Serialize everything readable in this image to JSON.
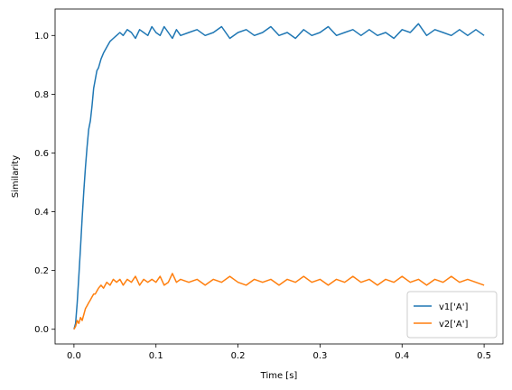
{
  "chart_data": {
    "type": "line",
    "title": "",
    "xlabel": "Time [s]",
    "ylabel": "Similarity",
    "xlim": [
      -0.023,
      0.523
    ],
    "ylim": [
      -0.05,
      1.09
    ],
    "xticks": [
      0.0,
      0.1,
      0.2,
      0.3,
      0.4,
      0.5
    ],
    "xtick_labels": [
      "0.0",
      "0.1",
      "0.2",
      "0.3",
      "0.4",
      "0.5"
    ],
    "yticks": [
      0.0,
      0.2,
      0.4,
      0.6,
      0.8,
      1.0
    ],
    "ytick_labels": [
      "0.0",
      "0.2",
      "0.4",
      "0.6",
      "0.8",
      "1.0"
    ],
    "grid": false,
    "legend_position": "lower-right",
    "series": [
      {
        "name": "v1['A']",
        "color": "#1f77b4",
        "x": [
          0.0,
          0.002,
          0.004,
          0.006,
          0.008,
          0.01,
          0.012,
          0.014,
          0.016,
          0.018,
          0.02,
          0.022,
          0.024,
          0.026,
          0.028,
          0.03,
          0.033,
          0.036,
          0.04,
          0.044,
          0.048,
          0.052,
          0.056,
          0.06,
          0.065,
          0.07,
          0.075,
          0.08,
          0.085,
          0.09,
          0.095,
          0.1,
          0.105,
          0.11,
          0.115,
          0.12,
          0.125,
          0.13,
          0.14,
          0.15,
          0.16,
          0.17,
          0.18,
          0.19,
          0.2,
          0.21,
          0.22,
          0.23,
          0.24,
          0.25,
          0.26,
          0.27,
          0.28,
          0.29,
          0.3,
          0.31,
          0.32,
          0.33,
          0.34,
          0.35,
          0.36,
          0.37,
          0.38,
          0.39,
          0.4,
          0.41,
          0.42,
          0.43,
          0.44,
          0.45,
          0.46,
          0.47,
          0.48,
          0.49,
          0.5
        ],
        "values": [
          0.0,
          0.02,
          0.09,
          0.18,
          0.28,
          0.38,
          0.47,
          0.55,
          0.62,
          0.68,
          0.71,
          0.76,
          0.82,
          0.85,
          0.88,
          0.89,
          0.92,
          0.94,
          0.96,
          0.98,
          0.99,
          1.0,
          1.01,
          1.0,
          1.02,
          1.01,
          0.99,
          1.02,
          1.01,
          1.0,
          1.03,
          1.01,
          1.0,
          1.03,
          1.01,
          0.99,
          1.02,
          1.0,
          1.01,
          1.02,
          1.0,
          1.01,
          1.03,
          0.99,
          1.01,
          1.02,
          1.0,
          1.01,
          1.03,
          1.0,
          1.01,
          0.99,
          1.02,
          1.0,
          1.01,
          1.03,
          1.0,
          1.01,
          1.02,
          1.0,
          1.02,
          1.0,
          1.01,
          0.99,
          1.02,
          1.01,
          1.04,
          1.0,
          1.02,
          1.01,
          1.0,
          1.02,
          1.0,
          1.02,
          1.0
        ]
      },
      {
        "name": "v2['A']",
        "color": "#ff7f0e",
        "x": [
          0.0,
          0.002,
          0.004,
          0.006,
          0.008,
          0.01,
          0.012,
          0.014,
          0.016,
          0.018,
          0.02,
          0.022,
          0.024,
          0.026,
          0.028,
          0.03,
          0.033,
          0.036,
          0.04,
          0.044,
          0.048,
          0.052,
          0.056,
          0.06,
          0.065,
          0.07,
          0.075,
          0.08,
          0.085,
          0.09,
          0.095,
          0.1,
          0.105,
          0.11,
          0.115,
          0.12,
          0.125,
          0.13,
          0.14,
          0.15,
          0.16,
          0.17,
          0.18,
          0.19,
          0.2,
          0.21,
          0.22,
          0.23,
          0.24,
          0.25,
          0.26,
          0.27,
          0.28,
          0.29,
          0.3,
          0.31,
          0.32,
          0.33,
          0.34,
          0.35,
          0.36,
          0.37,
          0.38,
          0.39,
          0.4,
          0.41,
          0.42,
          0.43,
          0.44,
          0.45,
          0.46,
          0.47,
          0.48,
          0.49,
          0.5
        ],
        "values": [
          0.0,
          0.01,
          0.03,
          0.02,
          0.04,
          0.03,
          0.05,
          0.07,
          0.08,
          0.09,
          0.1,
          0.11,
          0.12,
          0.12,
          0.13,
          0.14,
          0.15,
          0.14,
          0.16,
          0.15,
          0.17,
          0.16,
          0.17,
          0.15,
          0.17,
          0.16,
          0.18,
          0.15,
          0.17,
          0.16,
          0.17,
          0.16,
          0.18,
          0.15,
          0.16,
          0.19,
          0.16,
          0.17,
          0.16,
          0.17,
          0.15,
          0.17,
          0.16,
          0.18,
          0.16,
          0.15,
          0.17,
          0.16,
          0.17,
          0.15,
          0.17,
          0.16,
          0.18,
          0.16,
          0.17,
          0.15,
          0.17,
          0.16,
          0.18,
          0.16,
          0.17,
          0.15,
          0.17,
          0.16,
          0.18,
          0.16,
          0.17,
          0.15,
          0.17,
          0.16,
          0.18,
          0.16,
          0.17,
          0.16,
          0.15
        ]
      }
    ]
  }
}
